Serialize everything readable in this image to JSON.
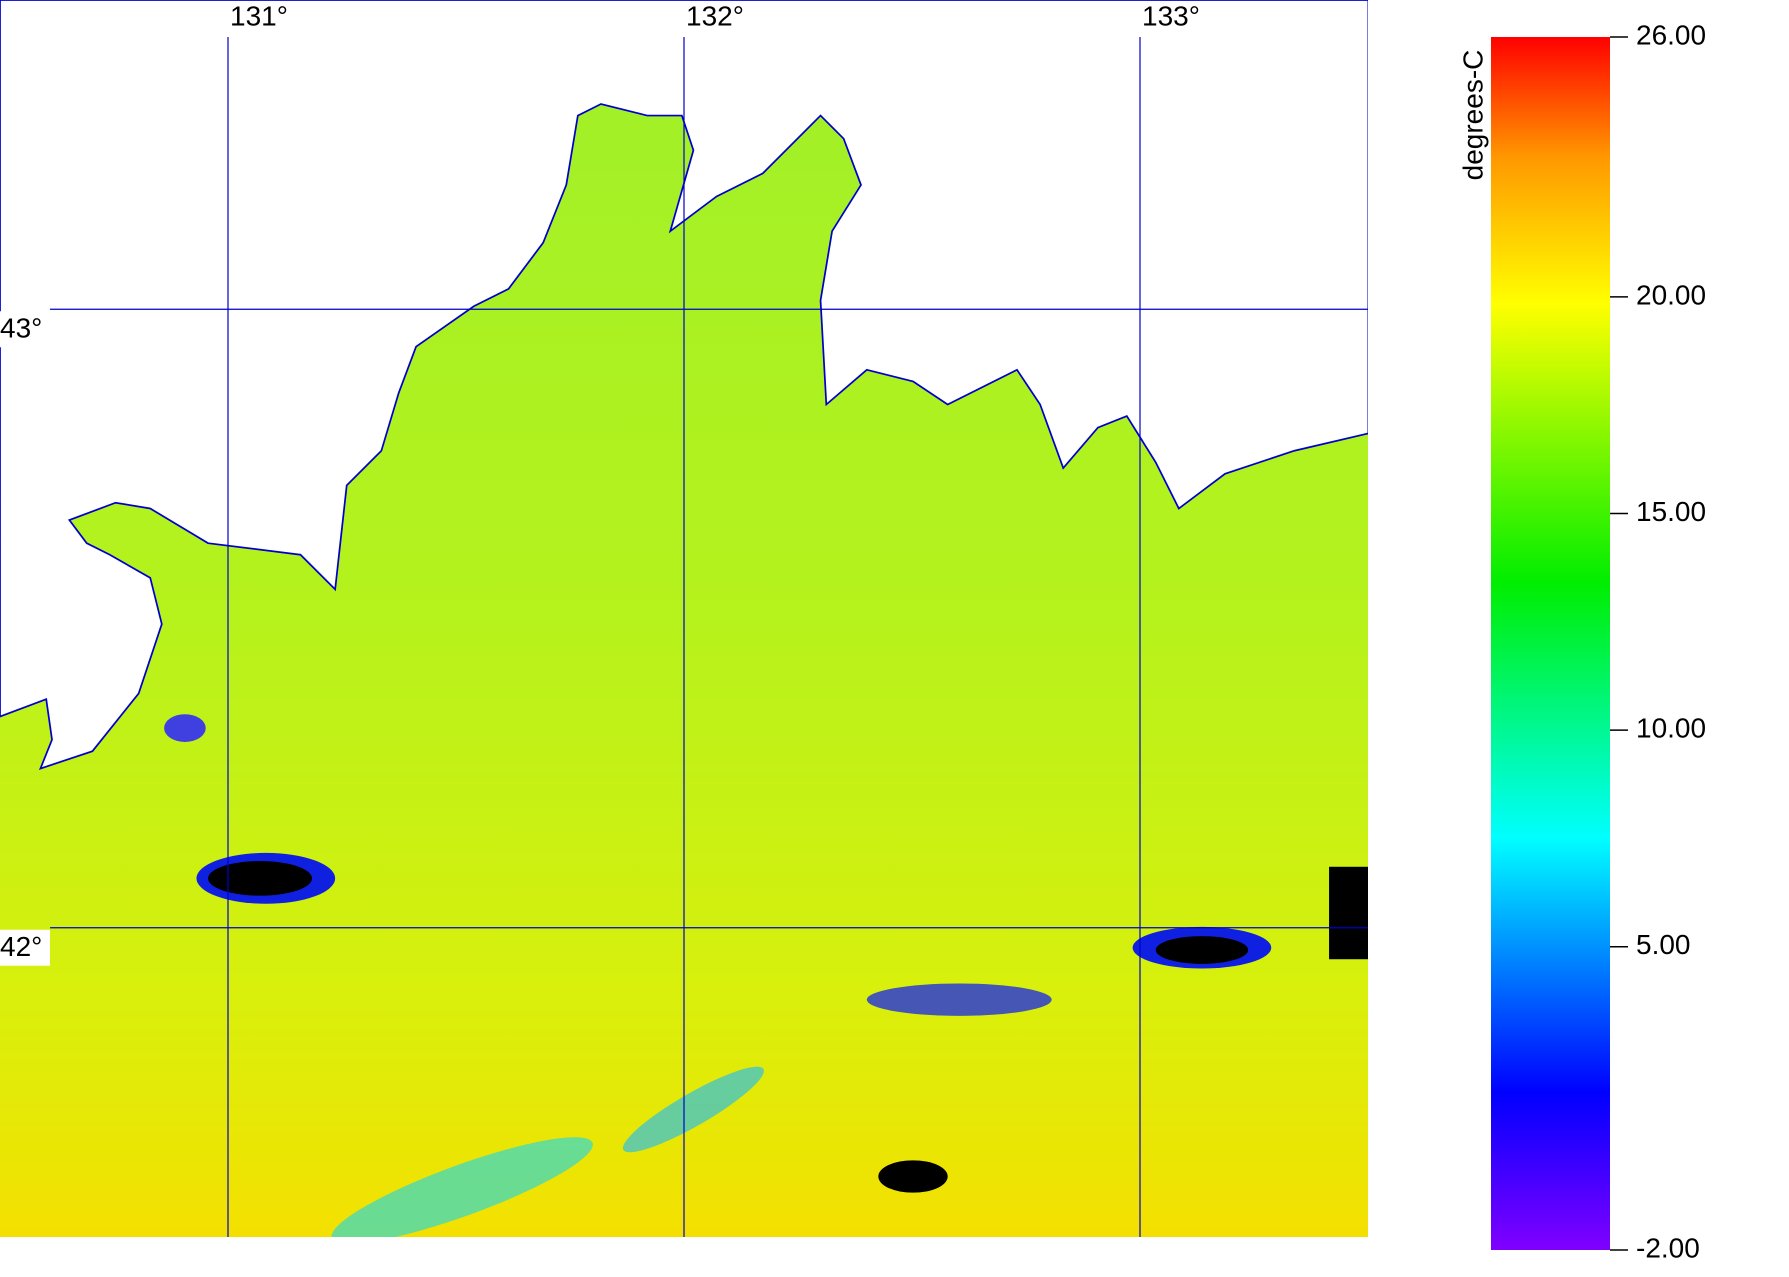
{
  "map": {
    "xlim": [
      130.5,
      133.5
    ],
    "ylim": [
      41.5,
      43.5
    ],
    "lon_lines": [
      {
        "value": 131,
        "label": "131°"
      },
      {
        "value": 132,
        "label": "132°"
      },
      {
        "value": 133,
        "label": "133°"
      }
    ],
    "lat_lines": [
      {
        "value": 43,
        "label": "43°"
      },
      {
        "value": 42,
        "label": "42°"
      }
    ],
    "grid_color": "#0000cc"
  },
  "colorbar": {
    "label": "degrees-C",
    "lim": [
      -2,
      26
    ],
    "ticks": [
      {
        "value": 26,
        "label": "26.00"
      },
      {
        "value": 20,
        "label": "20.00"
      },
      {
        "value": 15,
        "label": "15.00"
      },
      {
        "value": 10,
        "label": "10.00"
      },
      {
        "value": 5,
        "label": "5.00"
      },
      {
        "value": -2,
        "label": "-2.00"
      }
    ]
  }
}
